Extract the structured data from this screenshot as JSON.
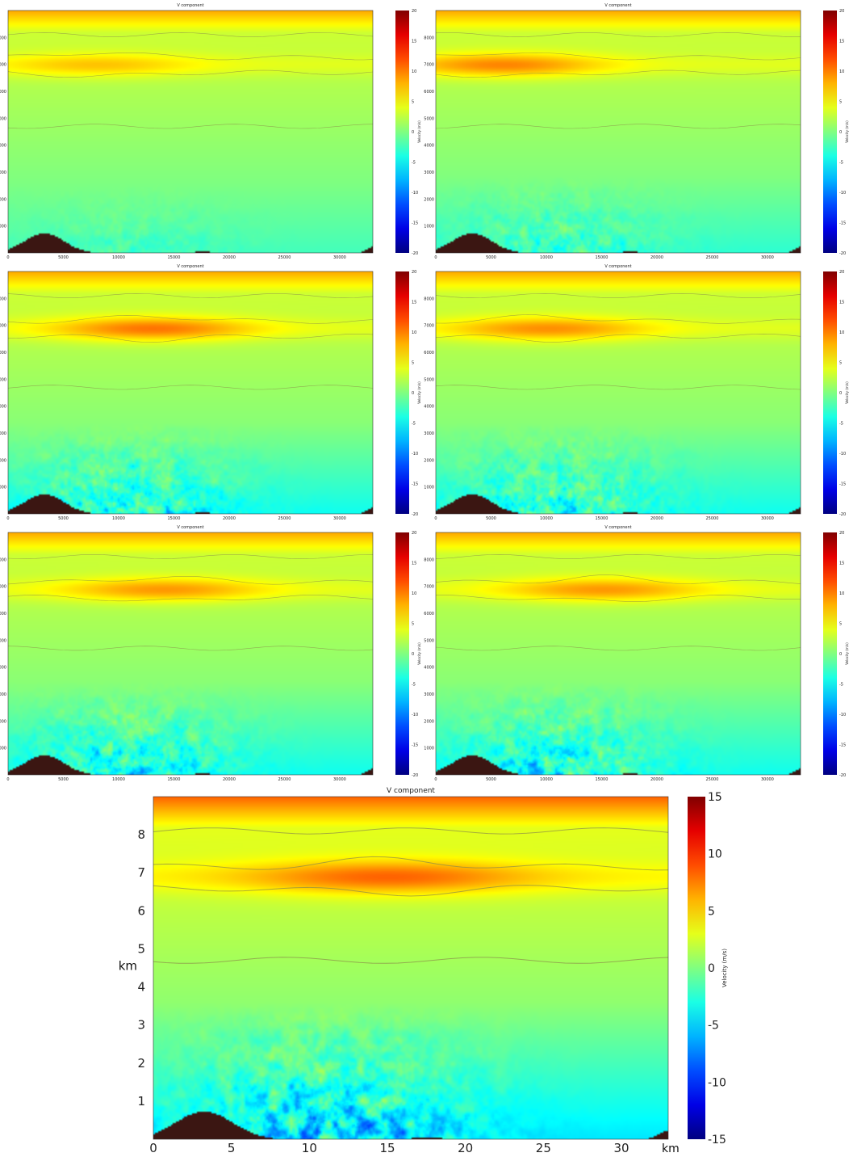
{
  "chart_data": [
    {
      "type": "heatmap",
      "title": "V component",
      "x_ticks": [
        "0",
        "5000",
        "10000",
        "15000",
        "20000",
        "25000",
        "30000"
      ],
      "y_ticks": [
        "1000",
        "2000",
        "3000",
        "4000",
        "5000",
        "6000",
        "7000",
        "8000"
      ],
      "colorbar_label": "Velocity (m/s)",
      "colorbar_ticks": [
        "20",
        "15",
        "10",
        "5",
        "0",
        "-5",
        "-10",
        "-15",
        "-20"
      ],
      "vlim": [
        -20,
        20
      ],
      "field": {
        "jet_height_km": 7.0,
        "jet_center_km": 8,
        "jet_strength": 5.0,
        "low_turbulence": 0.3,
        "low_depth_km": 2.0
      }
    },
    {
      "type": "heatmap",
      "title": "V component",
      "x_ticks": [
        "0",
        "5000",
        "10000",
        "15000",
        "20000",
        "25000",
        "30000"
      ],
      "y_ticks": [
        "1000",
        "2000",
        "3000",
        "4000",
        "5000",
        "6000",
        "7000",
        "8000"
      ],
      "colorbar_label": "Velocity (m/s)",
      "colorbar_ticks": [
        "20",
        "15",
        "10",
        "5",
        "0",
        "-5",
        "-10",
        "-15",
        "-20"
      ],
      "vlim": [
        -20,
        20
      ],
      "field": {
        "jet_height_km": 7.0,
        "jet_center_km": 6,
        "jet_strength": 8.5,
        "low_turbulence": 0.6,
        "low_depth_km": 2.3
      }
    },
    {
      "type": "heatmap",
      "title": "V component",
      "x_ticks": [
        "0",
        "5000",
        "10000",
        "15000",
        "20000",
        "25000",
        "30000"
      ],
      "y_ticks": [
        "1000",
        "2000",
        "3000",
        "4000",
        "5000",
        "6000",
        "7000",
        "8000"
      ],
      "colorbar_label": "Velocity (m/s)",
      "colorbar_ticks": [
        "20",
        "15",
        "10",
        "5",
        "0",
        "-5",
        "-10",
        "-15",
        "-20"
      ],
      "vlim": [
        -20,
        20
      ],
      "field": {
        "jet_height_km": 6.9,
        "jet_center_km": 13,
        "jet_strength": 9.5,
        "low_turbulence": 1.0,
        "low_depth_km": 2.8
      }
    },
    {
      "type": "heatmap",
      "title": "V component",
      "x_ticks": [
        "0",
        "5000",
        "10000",
        "15000",
        "20000",
        "25000",
        "30000"
      ],
      "y_ticks": [
        "1000",
        "2000",
        "3000",
        "4000",
        "5000",
        "6000",
        "7000",
        "8000"
      ],
      "colorbar_label": "Velocity (m/s)",
      "colorbar_ticks": [
        "20",
        "15",
        "10",
        "5",
        "0",
        "-5",
        "-10",
        "-15",
        "-20"
      ],
      "vlim": [
        -20,
        20
      ],
      "field": {
        "jet_height_km": 6.9,
        "jet_center_km": 10,
        "jet_strength": 8.0,
        "low_turbulence": 1.0,
        "low_depth_km": 2.8
      }
    },
    {
      "type": "heatmap",
      "title": "V component",
      "x_ticks": [
        "0",
        "5000",
        "10000",
        "15000",
        "20000",
        "25000",
        "30000"
      ],
      "y_ticks": [
        "1000",
        "2000",
        "3000",
        "4000",
        "5000",
        "6000",
        "7000",
        "8000"
      ],
      "colorbar_label": "Velocity (m/s)",
      "colorbar_ticks": [
        "20",
        "15",
        "10",
        "5",
        "0",
        "-5",
        "-10",
        "-15",
        "-20"
      ],
      "vlim": [
        -20,
        20
      ],
      "field": {
        "jet_height_km": 6.9,
        "jet_center_km": 14,
        "jet_strength": 7.5,
        "low_turbulence": 1.0,
        "low_depth_km": 2.9
      }
    },
    {
      "type": "heatmap",
      "title": "V component",
      "x_ticks": [
        "0",
        "5000",
        "10000",
        "15000",
        "20000",
        "25000",
        "30000"
      ],
      "y_ticks": [
        "1000",
        "2000",
        "3000",
        "4000",
        "5000",
        "6000",
        "7000",
        "8000"
      ],
      "colorbar_label": "Velocity (m/s)",
      "colorbar_ticks": [
        "20",
        "15",
        "10",
        "5",
        "0",
        "-5",
        "-10",
        "-15",
        "-20"
      ],
      "vlim": [
        -20,
        20
      ],
      "field": {
        "jet_height_km": 6.9,
        "jet_center_km": 15,
        "jet_strength": 7.5,
        "low_turbulence": 1.0,
        "low_depth_km": 2.9
      }
    },
    {
      "type": "heatmap",
      "title": "V component",
      "xlabel": "km",
      "ylabel": "km",
      "x_ticks": [
        "0",
        "5",
        "10",
        "15",
        "20",
        "25",
        "30"
      ],
      "y_ticks": [
        "1",
        "2",
        "3",
        "4",
        "5",
        "6",
        "7",
        "8"
      ],
      "colorbar_label": "Velocity (m/s)",
      "colorbar_ticks": [
        "15",
        "10",
        "5",
        "0",
        "-5",
        "-10",
        "-15"
      ],
      "vlim": [
        -15,
        15
      ],
      "field": {
        "jet_height_km": 6.9,
        "jet_center_km": 15,
        "jet_strength": 6.5,
        "low_turbulence": 1.0,
        "low_depth_km": 3.0
      }
    }
  ],
  "colors": {
    "terrain": "#3b1612",
    "contour": "#8a8a4a",
    "footer_text": "#d9d916"
  }
}
